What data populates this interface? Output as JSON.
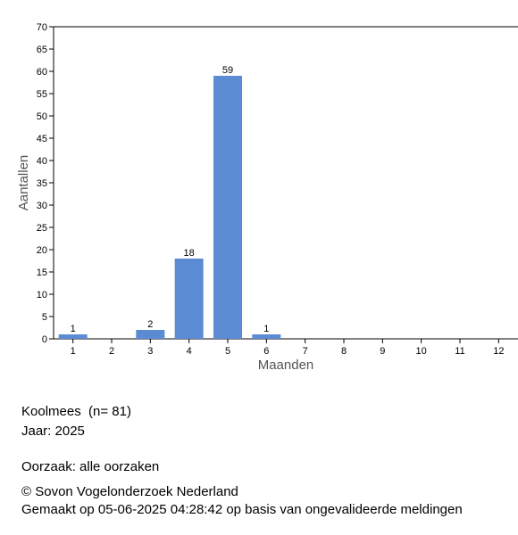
{
  "chart_data": {
    "type": "bar",
    "categories": [
      "1",
      "2",
      "3",
      "4",
      "5",
      "6",
      "7",
      "8",
      "9",
      "10",
      "11",
      "12"
    ],
    "values": [
      1,
      0,
      2,
      18,
      59,
      1,
      0,
      0,
      0,
      0,
      0,
      0
    ],
    "color": "#5b8bd3",
    "ylim": [
      0,
      70
    ],
    "yticks": [
      0,
      5,
      10,
      15,
      20,
      25,
      30,
      35,
      40,
      45,
      50,
      55,
      60,
      65,
      70
    ],
    "x_label": "Maanden",
    "y_label": "Aantallen",
    "captions": [
      "Koolmees  (n= 81)",
      "Jaar: 2025",
      "Oorzaak: alle oorzaken",
      "© Sovon Vogelonderzoek Nederland",
      "Gemaakt op 05-06-2025 04:28:42 op basis van ongevalideerde meldingen"
    ]
  }
}
